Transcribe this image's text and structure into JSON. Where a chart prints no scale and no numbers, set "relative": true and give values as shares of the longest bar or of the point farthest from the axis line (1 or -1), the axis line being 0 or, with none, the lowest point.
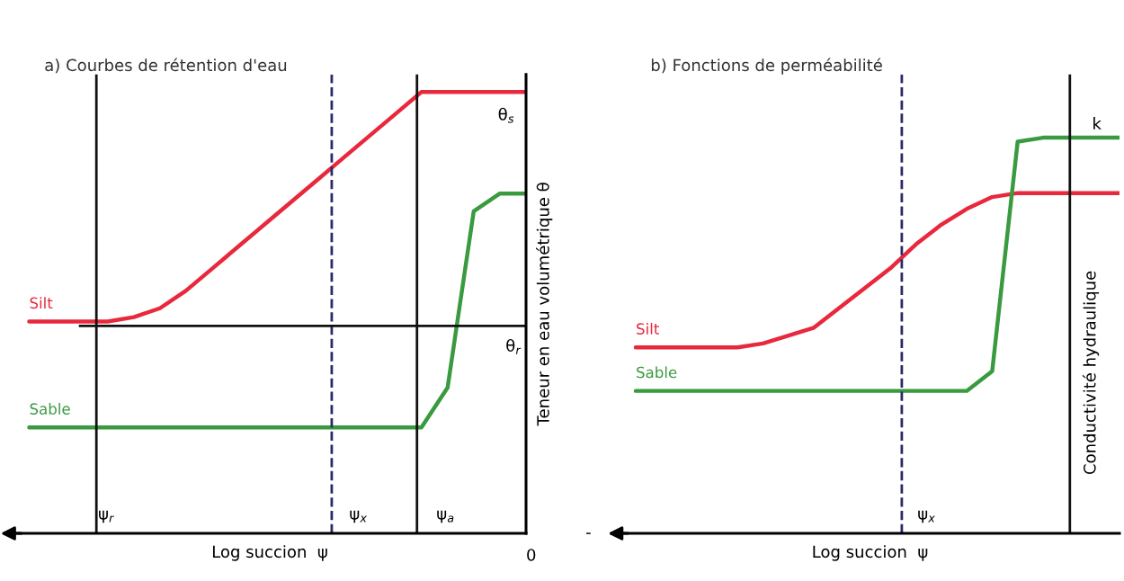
{
  "chart_data": [
    {
      "type": "line",
      "title": "a) Courbes de rétention d'eau",
      "xlabel": "Log succion  ψ",
      "ylabel": "Teneur en eau volumétrique θ",
      "relative": true,
      "grid": false,
      "marker": "none",
      "categories": [
        null,
        null,
        null,
        null,
        null,
        null,
        null,
        null,
        null,
        null,
        null,
        null,
        null,
        null,
        null,
        null,
        null,
        null,
        null,
        null
      ],
      "series": [
        {
          "name": "Silt",
          "color": "#e8283c",
          "values": [
            0.48,
            0.48,
            0.48,
            0.48,
            0.49,
            0.51,
            0.55,
            0.6,
            0.65,
            0.7,
            0.75,
            0.8,
            0.85,
            0.9,
            0.95,
            1,
            1,
            1,
            1,
            1
          ]
        },
        {
          "name": "Sable",
          "color": "#3a9a3f",
          "values": [
            0.24,
            0.24,
            0.24,
            0.24,
            0.24,
            0.24,
            0.24,
            0.24,
            0.24,
            0.24,
            0.24,
            0.24,
            0.24,
            0.24,
            0.24,
            0.24,
            0.33,
            0.73,
            0.77,
            0.77
          ]
        }
      ],
      "ref_lines": [
        {
          "axis": "y",
          "value": 0.47,
          "label": "θ$_{r}$",
          "color": "#111111",
          "line_style": "solid"
        }
      ],
      "annotations": [
        "θ$_{s}$",
        "0",
        "ψ$_{r}$",
        "ψ$_{x}$",
        "ψ$_{a}$"
      ]
    },
    {
      "type": "line",
      "title": "b) Fonctions de perméabilité",
      "xlabel": "Log succion  ψ",
      "ylabel": "Conductivité hydraulique",
      "relative": true,
      "grid": false,
      "marker": "none",
      "categories": [
        null,
        null,
        null,
        null,
        null,
        null,
        null,
        null,
        null,
        null,
        null,
        null,
        null,
        null,
        null,
        null,
        null,
        null,
        null,
        null
      ],
      "series": [
        {
          "name": "Silt",
          "color": "#e8283c",
          "values": [
            0.47,
            0.47,
            0.47,
            0.47,
            0.47,
            0.48,
            0.5,
            0.52,
            0.57,
            0.62,
            0.67,
            0.73,
            0.78,
            0.82,
            0.85,
            0.86,
            0.86,
            0.86,
            0.86,
            0.86
          ]
        },
        {
          "name": "Sable",
          "color": "#3a9a3f",
          "values": [
            0.36,
            0.36,
            0.36,
            0.36,
            0.36,
            0.36,
            0.36,
            0.36,
            0.36,
            0.36,
            0.36,
            0.36,
            0.36,
            0.36,
            0.41,
            0.99,
            1,
            1,
            1,
            1
          ]
        }
      ],
      "annotations": [
        "k",
        "-",
        "ψ$_{x}$"
      ]
    }
  ]
}
